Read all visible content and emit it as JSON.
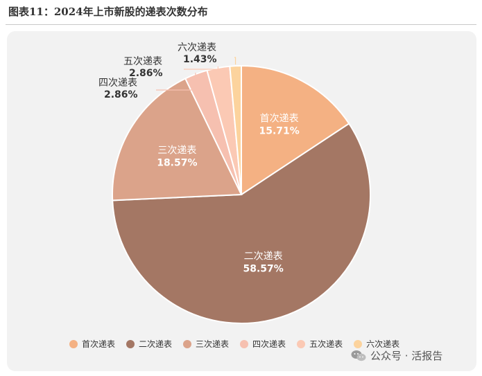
{
  "title": "图表11：2024年上市新股的递表次数分布",
  "watermark": "公众号 · 活报告",
  "watermark_icon": "wechat-icon",
  "chart_data": {
    "type": "pie",
    "title": "",
    "legend_position": "bottom",
    "slices": [
      {
        "label": "首次递表",
        "value": 15.71,
        "value_text": "15.71%",
        "color": "#f4b183"
      },
      {
        "label": "二次递表",
        "value": 58.57,
        "value_text": "58.57%",
        "color": "#a47764"
      },
      {
        "label": "三次递表",
        "value": 18.57,
        "value_text": "18.57%",
        "color": "#dba38a"
      },
      {
        "label": "四次递表",
        "value": 2.86,
        "value_text": "2.86%",
        "color": "#f6c0b0"
      },
      {
        "label": "五次递表",
        "value": 2.86,
        "value_text": "2.86%",
        "color": "#fbc9b4"
      },
      {
        "label": "六次递表",
        "value": 1.43,
        "value_text": "1.43%",
        "color": "#fcd39d"
      }
    ]
  }
}
